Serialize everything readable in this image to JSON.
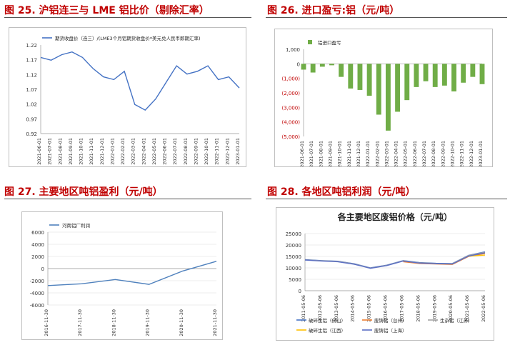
{
  "figures": [
    {
      "title": "图 25.  沪铝连三与 LME 铝比价（剔除汇率）"
    },
    {
      "title": "图 26.  进口盈亏:铝（元/吨）"
    },
    {
      "title": "图 27.  主要地区吨铝盈利（元/吨）"
    },
    {
      "title": "图 28.  各地区吨铝利润（元/吨）"
    }
  ],
  "chart_data": [
    {
      "type": "line",
      "title": "",
      "legend": "期货收盘价（连三）/(LME3个月铝期货收盘价*美元兑人民币即期汇率)",
      "legend_position": "top",
      "color": "#4472c4",
      "x": [
        "2021-06-01",
        "2021-07-01",
        "2021-08-01",
        "2021-09-01",
        "2021-10-01",
        "2021-11-01",
        "2021-12-01",
        "2022-01-01",
        "2022-02-01",
        "2022-03-01",
        "2022-04-01",
        "2022-05-01",
        "2022-06-01",
        "2022-07-01",
        "2022-08-01",
        "2022-09-01",
        "2022-10-01",
        "2022-11-01",
        "2022-12-01",
        "2023-01-01"
      ],
      "y": [
        1.195,
        1.185,
        1.205,
        1.215,
        1.195,
        1.155,
        1.125,
        1.115,
        1.145,
        1.025,
        1.005,
        1.045,
        1.105,
        1.165,
        1.135,
        1.145,
        1.165,
        1.115,
        1.125,
        1.085
      ],
      "ylim": [
        0.92,
        1.24
      ],
      "yticks": [
        "1.22",
        "1.17",
        "1.12",
        "1.07",
        "1.02",
        "0.97",
        "0.92"
      ],
      "grid": false
    },
    {
      "type": "bar",
      "title": "",
      "legend": "铝进口盈亏",
      "legend_position": "top",
      "color": "#70ad47",
      "x": [
        "2021-06-01",
        "2021-07-01",
        "2021-08-01",
        "2021-09-01",
        "2021-10-01",
        "2021-11-01",
        "2021-12-01",
        "2022-01-01",
        "2022-02-01",
        "2022-03-01",
        "2022-04-01",
        "2022-05-01",
        "2022-06-01",
        "2022-07-01",
        "2022-08-01",
        "2022-09-01",
        "2022-10-01",
        "2022-11-01",
        "2022-12-01",
        "2023-01-01"
      ],
      "y": [
        -400,
        -600,
        -200,
        -100,
        -900,
        -1700,
        -1800,
        -2200,
        -3500,
        -4600,
        -3300,
        -2500,
        -1600,
        -1200,
        -1600,
        -1500,
        -1900,
        -1300,
        -900,
        -1400
      ],
      "ylim": [
        -5000,
        1000
      ],
      "yticks": [
        "1,000",
        "0",
        "(1,000)",
        "(2,000)",
        "(3,000)",
        "(4,000)",
        "(5,000)"
      ],
      "grid": false
    },
    {
      "type": "line",
      "title": "",
      "legend": "河南铝厂利润",
      "legend_position": "top",
      "color": "#4f81bd",
      "x": [
        "2016-11-30",
        "2017-11-30",
        "2018-11-30",
        "2019-11-30",
        "2020-11-30",
        "2021-11-30"
      ],
      "y": [
        -2800,
        -2500,
        -1800,
        -2600,
        -400,
        1200
      ],
      "ylim": [
        -6000,
        6000
      ],
      "yticks": [
        "6000",
        "4000",
        "2000",
        "0",
        "-2000",
        "-4000",
        "-6000"
      ],
      "grid": true
    },
    {
      "type": "line",
      "title": "各主要地区废铝价格（元/吨）",
      "legend_position": "bottom",
      "x": [
        "2011-05-06",
        "2012-05-06",
        "2013-05-06",
        "2014-05-06",
        "2015-05-06",
        "2016-05-06",
        "2017-05-06",
        "2018-05-06",
        "2019-05-06",
        "2020-05-06",
        "2021-05-06",
        "2022-05-06"
      ],
      "ylim": [
        0,
        25000
      ],
      "yticks": [
        "25000",
        "20000",
        "15000",
        "10000",
        "5000",
        "0"
      ],
      "grid": true,
      "series": [
        {
          "name": "破碎生铝（佛山）",
          "color": "#4472c4",
          "values": [
            13600,
            13200,
            12900,
            11800,
            10000,
            11200,
            13200,
            12300,
            12000,
            11900,
            15500,
            17000
          ]
        },
        {
          "name": "废铸铝（台州）",
          "color": "#ed7d31",
          "values": [
            null,
            null,
            null,
            null,
            null,
            null,
            12700,
            11900,
            11700,
            11500,
            15000,
            16300
          ]
        },
        {
          "name": "生杂铝（江苏）",
          "color": "#a5a5a5",
          "values": [
            13500,
            13100,
            12800,
            11700,
            9900,
            11100,
            13100,
            12200,
            11900,
            11800,
            15400,
            16800
          ]
        },
        {
          "name": "破碎生铝（江西）",
          "color": "#ffc000",
          "values": [
            null,
            null,
            null,
            null,
            null,
            null,
            null,
            null,
            null,
            null,
            15100,
            15600
          ]
        },
        {
          "name": "废铸铝（上海）",
          "color": "#5b6fc4",
          "values": [
            13400,
            13000,
            12700,
            11600,
            9800,
            11000,
            13000,
            12100,
            11800,
            11700,
            15200,
            16600
          ]
        }
      ]
    }
  ]
}
